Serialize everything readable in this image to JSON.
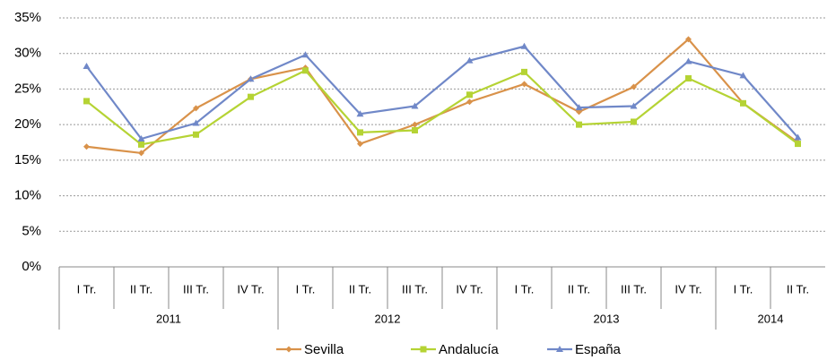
{
  "chart_data": {
    "type": "line",
    "categories": [
      "I Tr.",
      "II Tr.",
      "III Tr.",
      "IV Tr.",
      "I Tr.",
      "II Tr.",
      "III Tr.",
      "IV Tr.",
      "I Tr.",
      "II Tr.",
      "III Tr.",
      "IV Tr.",
      "I Tr.",
      "II Tr."
    ],
    "year_groups": [
      {
        "name": "2011",
        "count": 4
      },
      {
        "name": "2012",
        "count": 4
      },
      {
        "name": "2013",
        "count": 4
      },
      {
        "name": "2014",
        "count": 2
      }
    ],
    "series": [
      {
        "name": "Sevilla",
        "color": "#d9924a",
        "marker": "diamond",
        "values": [
          16.9,
          16.0,
          22.3,
          26.4,
          28.0,
          17.3,
          20.0,
          23.2,
          25.7,
          21.8,
          25.3,
          32.0,
          23.0,
          17.5
        ]
      },
      {
        "name": "Andalucía",
        "color": "#b5d334",
        "marker": "square",
        "values": [
          23.3,
          17.2,
          18.6,
          23.9,
          27.6,
          18.9,
          19.2,
          24.2,
          27.4,
          20.0,
          20.4,
          26.5,
          23.0,
          17.3
        ]
      },
      {
        "name": "España",
        "color": "#7088c8",
        "marker": "triangle",
        "values": [
          28.2,
          18.0,
          20.2,
          26.4,
          29.8,
          21.5,
          22.6,
          29.0,
          31.0,
          22.4,
          22.6,
          28.9,
          26.9,
          18.2
        ]
      }
    ],
    "ylim": [
      0,
      35
    ],
    "yticks": [
      {
        "value": 0,
        "label": "0%"
      },
      {
        "value": 5,
        "label": "5%"
      },
      {
        "value": 10,
        "label": "10%"
      },
      {
        "value": 15,
        "label": "15%"
      },
      {
        "value": 20,
        "label": "20%"
      },
      {
        "value": 25,
        "label": "25%"
      },
      {
        "value": 30,
        "label": "30%"
      },
      {
        "value": 35,
        "label": "35%"
      }
    ],
    "grid": true,
    "legend": "bottom"
  }
}
